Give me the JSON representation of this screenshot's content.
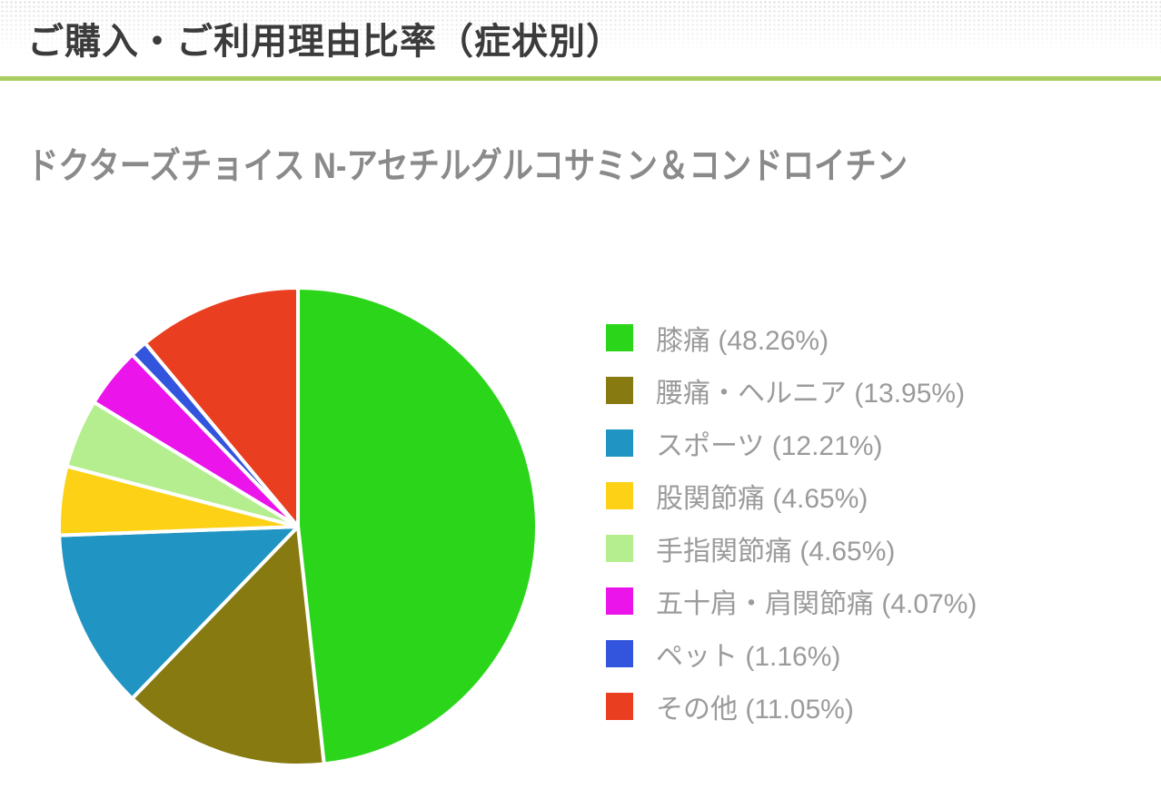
{
  "header": {
    "title": "ご購入・ご利用理由比率（症状別）"
  },
  "subtitle": "ドクターズチョイス N-アセチルグルコサミン＆コンドロイチン",
  "colors": {
    "accent_line": "#a9cd62",
    "title_text": "#3b3b3b",
    "subtitle_text": "#8a8a8a",
    "legend_text": "#9b9b9b",
    "slice_separator": "#ffffff"
  },
  "chart_data": {
    "type": "pie",
    "title": "ご購入・ご利用理由比率（症状別）",
    "subtitle": "ドクターズチョイス N-アセチルグルコサミン＆コンドロイチン",
    "start_angle_deg": 0,
    "direction": "clockwise",
    "legend_position": "right",
    "label_format": "{label} ({value}%)",
    "slices": [
      {
        "label": "膝痛",
        "value": 48.26,
        "color": "#2bd61a"
      },
      {
        "label": "腰痛・ヘルニア",
        "value": 13.95,
        "color": "#877a11"
      },
      {
        "label": "スポーツ",
        "value": 12.21,
        "color": "#2094c2"
      },
      {
        "label": "股関節痛",
        "value": 4.65,
        "color": "#fcd116"
      },
      {
        "label": "手指関節痛",
        "value": 4.65,
        "color": "#b5ee8e"
      },
      {
        "label": "五十肩・肩関節痛",
        "value": 4.07,
        "color": "#eb14eb"
      },
      {
        "label": "ペット",
        "value": 1.16,
        "color": "#3355dd"
      },
      {
        "label": "その他",
        "value": 11.05,
        "color": "#e93e20"
      }
    ]
  }
}
